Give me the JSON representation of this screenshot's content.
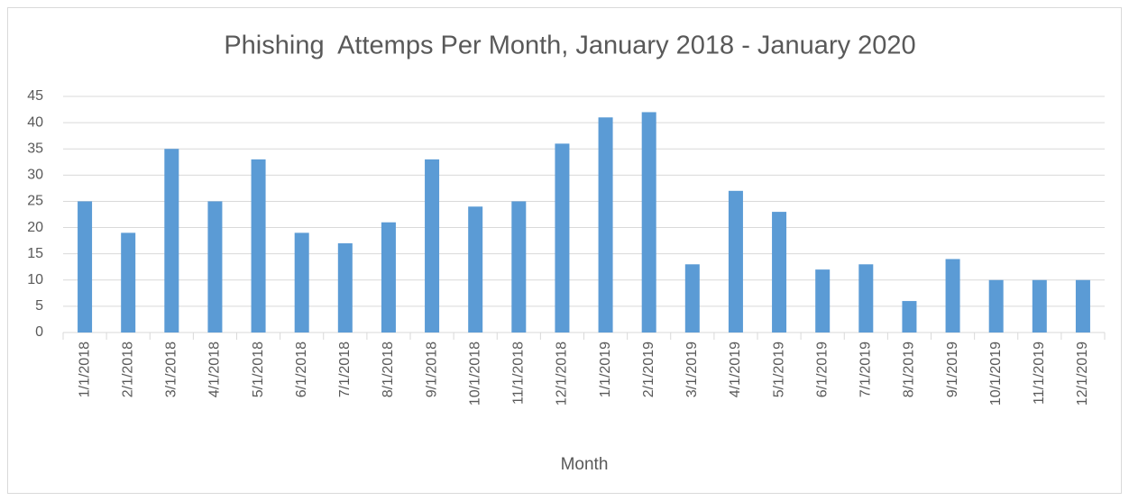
{
  "chart_data": {
    "type": "bar",
    "title": "Phishing  Attemps Per Month, January 2018 - January 2020",
    "x_label": "Month",
    "categories": [
      "1/1/2018",
      "2/1/2018",
      "3/1/2018",
      "4/1/2018",
      "5/1/2018",
      "6/1/2018",
      "7/1/2018",
      "8/1/2018",
      "9/1/2018",
      "10/1/2018",
      "11/1/2018",
      "12/1/2018",
      "1/1/2019",
      "2/1/2019",
      "3/1/2019",
      "4/1/2019",
      "5/1/2019",
      "6/1/2019",
      "7/1/2019",
      "8/1/2019",
      "9/1/2019",
      "10/1/2019",
      "11/1/2019",
      "12/1/2019"
    ],
    "values": [
      25,
      19,
      35,
      25,
      33,
      19,
      17,
      21,
      33,
      24,
      25,
      36,
      41,
      42,
      13,
      27,
      23,
      12,
      13,
      6,
      14,
      10,
      10,
      10
    ],
    "color": "#5b9bd5",
    "ylim": [
      0,
      45
    ],
    "yticks": [
      0,
      5,
      10,
      15,
      20,
      25,
      30,
      35,
      40,
      45
    ],
    "grid": true
  }
}
